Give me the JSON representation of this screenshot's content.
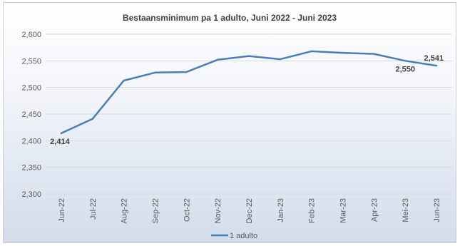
{
  "chart_data": {
    "type": "line",
    "title": "Bestaansminimum pa 1 adulto, Juni 2022 - Juni 2023",
    "xlabel": "",
    "ylabel": "",
    "categories": [
      "Jun-22",
      "Jul-22",
      "Aug-22",
      "Sep-22",
      "Oct-22",
      "Nov-22",
      "Dec-22",
      "Jan-23",
      "Feb-23",
      "Mar-23",
      "Apr-23",
      "Mei-23",
      "Jun-23"
    ],
    "series": [
      {
        "name": "1 adulto",
        "color": "#4a7ebb",
        "values": [
          2414,
          2441,
          2513,
          2528,
          2529,
          2552,
          2559,
          2553,
          2568,
          2565,
          2563,
          2550,
          2541
        ]
      }
    ],
    "data_labels": [
      {
        "index": 0,
        "text": "2,414",
        "position": "below"
      },
      {
        "index": 11,
        "text": "2,550",
        "position": "below"
      },
      {
        "index": 12,
        "text": "2,541",
        "position": "above"
      }
    ],
    "ylim": [
      2300,
      2600
    ],
    "yticks": [
      2300,
      2350,
      2400,
      2450,
      2500,
      2550,
      2600
    ],
    "ytick_labels": [
      "2,300",
      "2,350",
      "2,400",
      "2,450",
      "2,500",
      "2,550",
      "2,600"
    ],
    "grid": true,
    "legend_position": "bottom"
  }
}
